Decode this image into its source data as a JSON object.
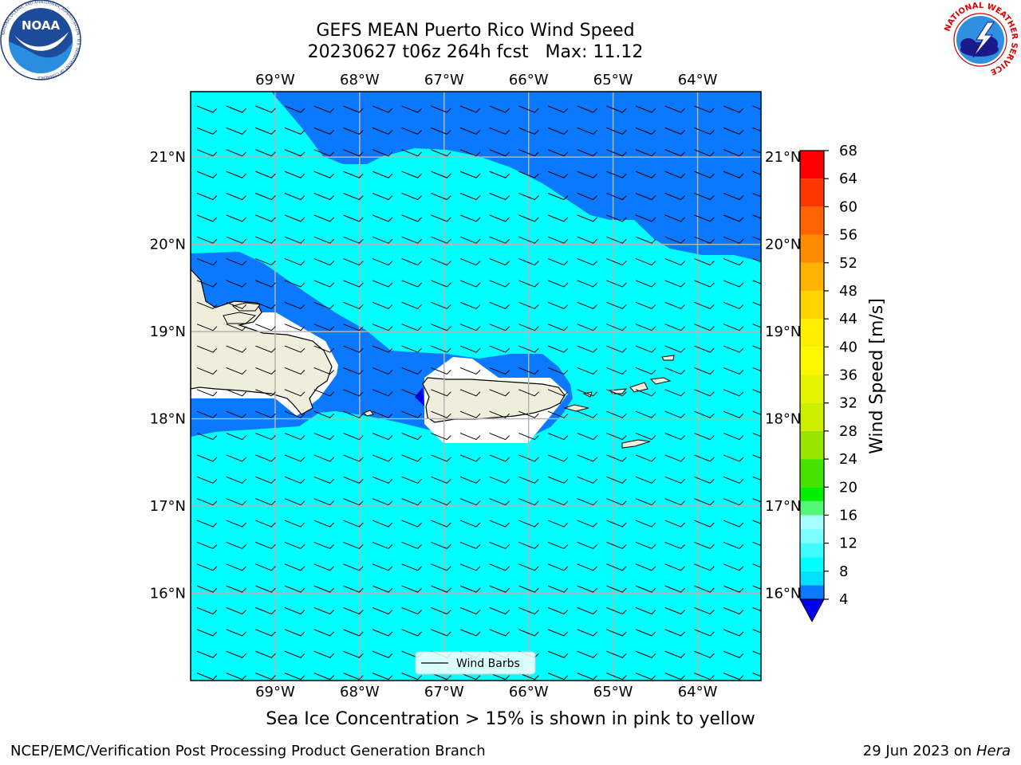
{
  "header": {
    "title_line1": "GEFS MEAN Puerto Rico Wind Speed",
    "title_line2": "20230627 t06z 264h fcst   Max: 11.12"
  },
  "logos": {
    "left": {
      "name": "noaa-logo-icon",
      "text": "NOAA",
      "ring_text": "NATIONAL OCEANIC AND ATMOSPHERIC ADMINISTRATION · U.S. DEPARTMENT OF COMMERCE"
    },
    "right": {
      "name": "nws-logo-icon",
      "ring_text": "NATIONAL WEATHER SERVICE"
    }
  },
  "map": {
    "lon_labels": [
      "69°W",
      "68°W",
      "67°W",
      "66°W",
      "65°W",
      "64°W"
    ],
    "lat_labels": [
      "21°N",
      "20°N",
      "19°N",
      "18°N",
      "17°N",
      "16°N"
    ],
    "lon_range": [
      -70.0,
      -63.25
    ],
    "lat_range": [
      15.0,
      21.75
    ],
    "grid": true,
    "legend_label": "Wind Barbs",
    "legend_position": "bottom-center",
    "colors": {
      "land": "#efeedc",
      "wind_4_8": "#0a78ff",
      "wind_8_12": "#00ffff",
      "wind_below_4": "#0000ee",
      "grid": "#b4b4b4"
    }
  },
  "colorbar": {
    "label": "Wind Speed [m/s]",
    "ticks": [
      "4",
      "8",
      "12",
      "16",
      "20",
      "24",
      "28",
      "32",
      "36",
      "40",
      "44",
      "48",
      "52",
      "56",
      "60",
      "64",
      "68"
    ],
    "levels": [
      4,
      6,
      8,
      10,
      12,
      14,
      16,
      18,
      20,
      24,
      28,
      32,
      36,
      40,
      44,
      48,
      52,
      56,
      60,
      64,
      68
    ],
    "bin_colors": [
      "#0a78ff",
      "#00e0ff",
      "#00ffff",
      "#3ffcff",
      "#7cfdff",
      "#a8ffff",
      "#55f779",
      "#00ee00",
      "#46e200",
      "#99e500",
      "#ccef00",
      "#e5f200",
      "#fff700",
      "#ffee00",
      "#ffd400",
      "#ffb300",
      "#ff8c00",
      "#ff6200",
      "#ff3600",
      "#ff0000"
    ],
    "under_color": "#0000ee"
  },
  "footer": {
    "note": "Sea Ice Concentration > 15% is shown in pink to yellow",
    "org": "NCEP/EMC/Verification Post Processing Product Generation Branch",
    "date": "29 Jun 2023 on ",
    "host": "Hera"
  }
}
